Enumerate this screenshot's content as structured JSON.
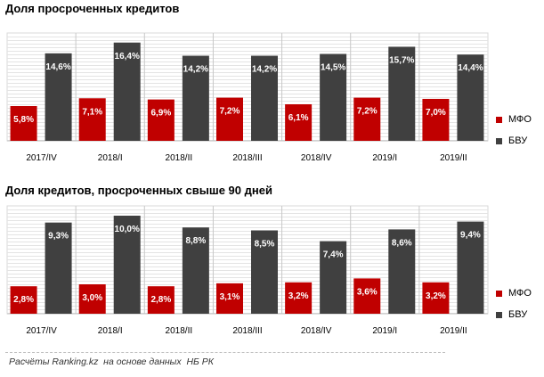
{
  "colors": {
    "mfo": "#c00000",
    "bvu": "#404040"
  },
  "chart_data": [
    {
      "type": "bar",
      "title": "Доля просроченных кредитов",
      "categories": [
        "2017/IV",
        "2018/I",
        "2018/II",
        "2018/III",
        "2018/IV",
        "2019/I",
        "2019/II"
      ],
      "series": [
        {
          "name": "МФО",
          "values": [
            5.8,
            7.1,
            6.9,
            7.2,
            6.1,
            7.2,
            7.0
          ],
          "labels": [
            "5,8%",
            "7,1%",
            "6,9%",
            "7,2%",
            "6,1%",
            "7,2%",
            "7,0%"
          ],
          "color": "#c00000"
        },
        {
          "name": "БВУ",
          "values": [
            14.6,
            16.4,
            14.2,
            14.2,
            14.5,
            15.7,
            14.4
          ],
          "labels": [
            "14,6%",
            "16,4%",
            "14,2%",
            "14,2%",
            "14,5%",
            "15,7%",
            "14,4%"
          ],
          "color": "#404040"
        }
      ],
      "ylim": [
        0,
        18
      ],
      "grid": true,
      "legend": "right"
    },
    {
      "type": "bar",
      "title": "Доля кредитов, просроченных свыше 90 дней",
      "categories": [
        "2017/IV",
        "2018/I",
        "2018/II",
        "2018/III",
        "2018/IV",
        "2019/I",
        "2019/II"
      ],
      "series": [
        {
          "name": "МФО",
          "values": [
            2.8,
            3.0,
            2.8,
            3.1,
            3.2,
            3.6,
            3.2
          ],
          "labels": [
            "2,8%",
            "3,0%",
            "2,8%",
            "3,1%",
            "3,2%",
            "3,6%",
            "3,2%"
          ],
          "color": "#c00000"
        },
        {
          "name": "БВУ",
          "values": [
            9.3,
            10.0,
            8.8,
            8.5,
            7.4,
            8.6,
            9.4
          ],
          "labels": [
            "9,3%",
            "10,0%",
            "8,8%",
            "8,5%",
            "7,4%",
            "8,6%",
            "9,4%"
          ],
          "color": "#404040"
        }
      ],
      "ylim": [
        0,
        11
      ],
      "grid": true,
      "legend": "right"
    }
  ],
  "source": "Расчёты Ranking.kz  на основе данных  НБ РК"
}
